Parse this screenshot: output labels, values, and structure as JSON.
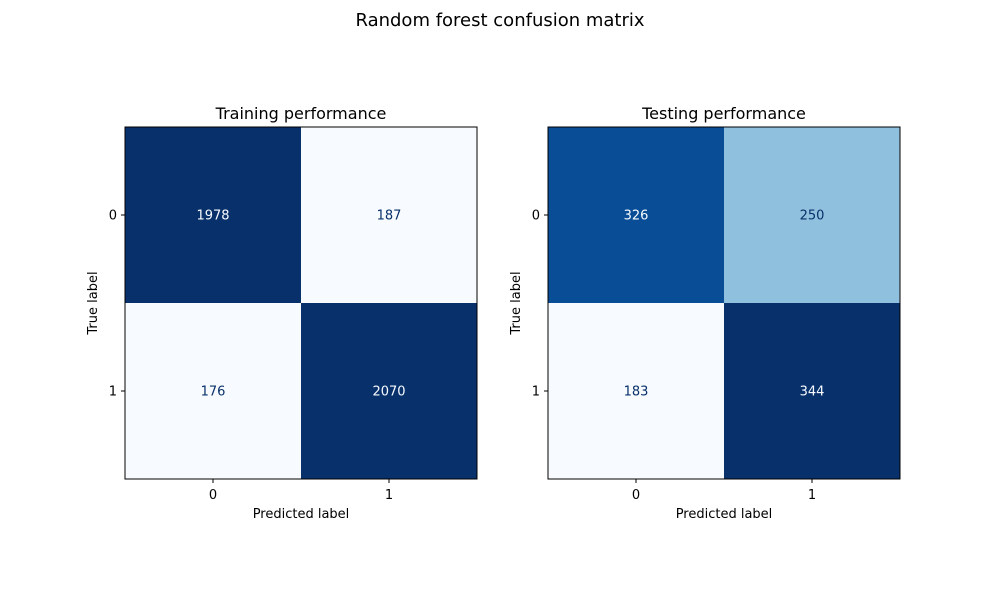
{
  "figure": {
    "title": "Random forest confusion matrix"
  },
  "chart_data": [
    {
      "type": "heatmap",
      "title": "Training performance",
      "xlabel": "Predicted label",
      "ylabel": "True label",
      "x_categories": [
        "0",
        "1"
      ],
      "y_categories": [
        "0",
        "1"
      ],
      "values": [
        [
          1978,
          187
        ],
        [
          176,
          2070
        ]
      ],
      "colormap": "Blues",
      "colors": [
        [
          "#08306b",
          "#f7fbff"
        ],
        [
          "#f7fbff",
          "#08306b"
        ]
      ],
      "text_colors": [
        [
          "#f7fbff",
          "#08306b"
        ],
        [
          "#08306b",
          "#f7fbff"
        ]
      ],
      "grid": false,
      "legend": "none"
    },
    {
      "type": "heatmap",
      "title": "Testing performance",
      "xlabel": "Predicted label",
      "ylabel": "True label",
      "x_categories": [
        "0",
        "1"
      ],
      "y_categories": [
        "0",
        "1"
      ],
      "values": [
        [
          326,
          250
        ],
        [
          183,
          344
        ]
      ],
      "colormap": "Blues",
      "colors": [
        [
          "#084d96",
          "#8fc1de"
        ],
        [
          "#f7fbff",
          "#08306b"
        ]
      ],
      "text_colors": [
        [
          "#f7fbff",
          "#08306b"
        ],
        [
          "#08306b",
          "#f7fbff"
        ]
      ],
      "grid": false,
      "legend": "none"
    }
  ]
}
